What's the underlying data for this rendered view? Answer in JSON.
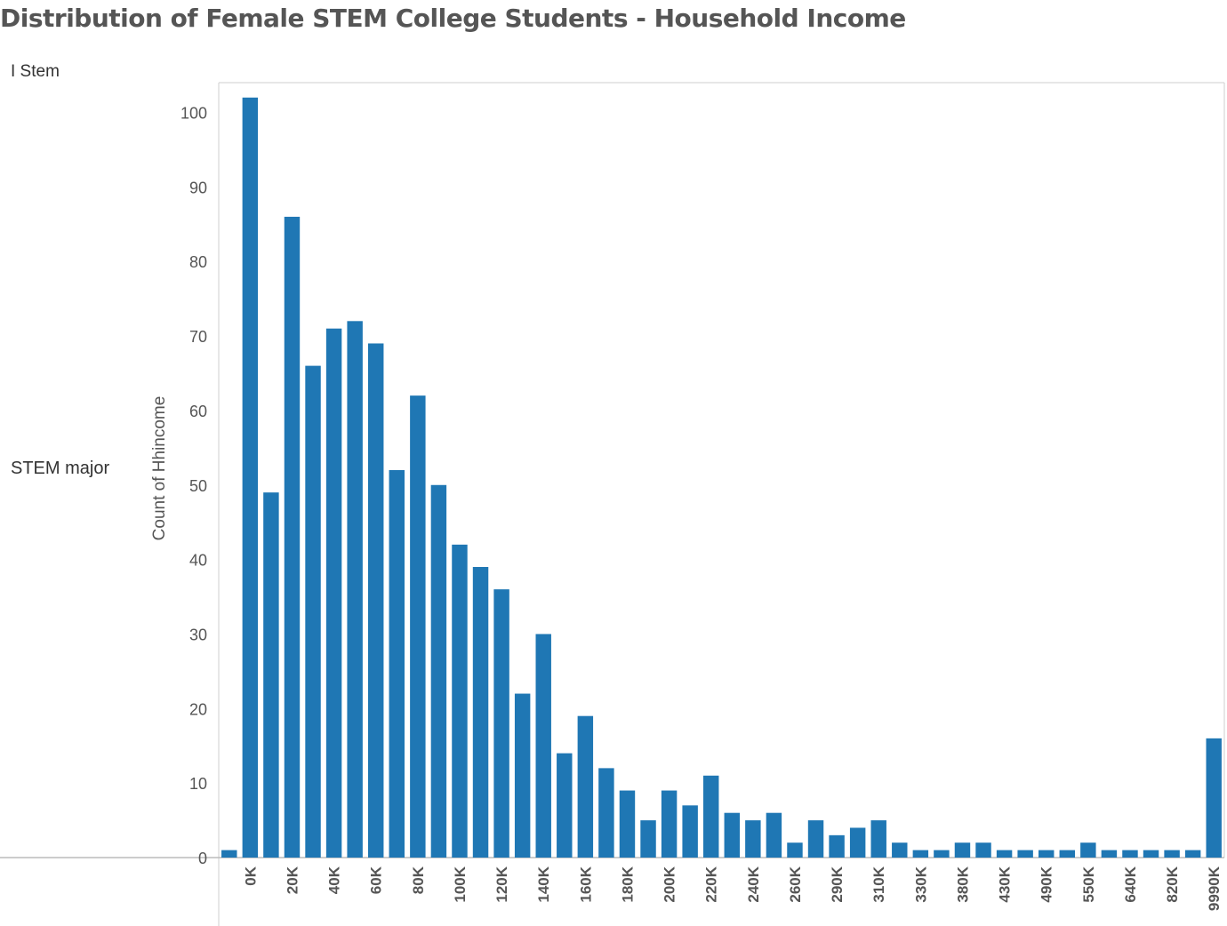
{
  "title": "Distribution of Female STEM College Students - Household Income",
  "header_field": "I Stem",
  "row_label": "STEM major",
  "colors": {
    "bar": "#1f77b4",
    "axis": "#bbbbbb",
    "frame": "#cfcfcf",
    "text": "#555555"
  },
  "chart_data": {
    "type": "bar",
    "title": "Distribution of Female STEM College Students - Household Income",
    "xlabel": "",
    "ylabel": "Count of Hhincome",
    "ylim": [
      0,
      104
    ],
    "yticks": [
      0,
      10,
      20,
      30,
      40,
      50,
      60,
      70,
      80,
      90,
      100
    ],
    "grid": false,
    "x_tick_labels": [
      "0K",
      "20K",
      "40K",
      "60K",
      "80K",
      "100K",
      "120K",
      "140K",
      "160K",
      "180K",
      "200K",
      "220K",
      "240K",
      "260K",
      "290K",
      "310K",
      "330K",
      "380K",
      "430K",
      "490K",
      "550K",
      "640K",
      "820K",
      "9990K"
    ],
    "categories": [
      "",
      "0K",
      "",
      "20K",
      "",
      "40K",
      "",
      "60K",
      "",
      "80K",
      "",
      "100K",
      "",
      "120K",
      "",
      "140K",
      "",
      "160K",
      "",
      "180K",
      "",
      "200K",
      "",
      "220K",
      "",
      "240K",
      "",
      "260K",
      "",
      "290K",
      "",
      "310K",
      "",
      "330K",
      "",
      "380K",
      "",
      "430K",
      "",
      "490K",
      "",
      "550K",
      "",
      "640K",
      "",
      "820K",
      "",
      "9990K"
    ],
    "values": [
      1,
      102,
      49,
      86,
      66,
      71,
      72,
      69,
      52,
      62,
      50,
      42,
      39,
      36,
      22,
      30,
      14,
      19,
      12,
      9,
      5,
      9,
      7,
      11,
      6,
      5,
      6,
      2,
      5,
      3,
      4,
      5,
      2,
      1,
      1,
      2,
      2,
      1,
      1,
      1,
      1,
      2,
      1,
      1,
      1,
      1,
      1,
      16
    ]
  }
}
